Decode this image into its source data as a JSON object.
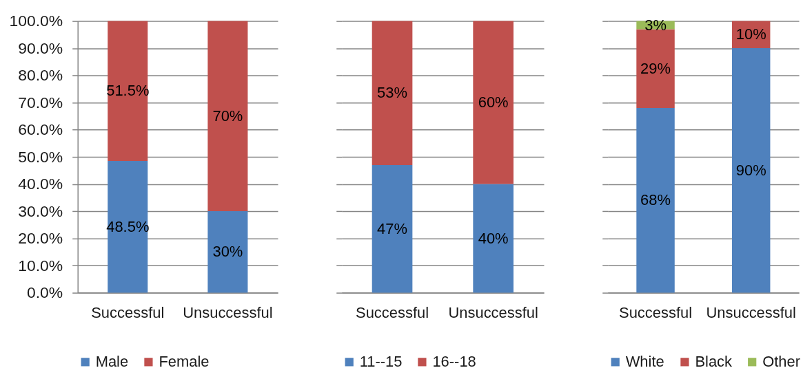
{
  "chart_data": [
    {
      "type": "bar",
      "stacked": true,
      "categories": [
        "Successful",
        "Unsuccessful"
      ],
      "series": [
        {
          "name": "Male",
          "color": "#4f81bd",
          "values": [
            48.5,
            30
          ],
          "value_labels": [
            "48.5%",
            "30%"
          ]
        },
        {
          "name": "Female",
          "color": "#c0504d",
          "values": [
            51.5,
            70
          ],
          "value_labels": [
            "51.5%",
            "70%"
          ]
        }
      ],
      "ylim": [
        0,
        100
      ],
      "yticks": [
        {
          "value": 0,
          "label": "0.0%"
        },
        {
          "value": 10,
          "label": "10.0%"
        },
        {
          "value": 20,
          "label": "20.0%"
        },
        {
          "value": 30,
          "label": "30.0%"
        },
        {
          "value": 40,
          "label": "40.0%"
        },
        {
          "value": 50,
          "label": "50.0%"
        },
        {
          "value": 60,
          "label": "60.0%"
        },
        {
          "value": 70,
          "label": "70.0%"
        },
        {
          "value": 80,
          "label": "80.0%"
        },
        {
          "value": 90,
          "label": "90.0%"
        },
        {
          "value": 100,
          "label": "100.0%"
        }
      ],
      "grid": "y",
      "legend": "bottom"
    },
    {
      "type": "bar",
      "stacked": true,
      "categories": [
        "Successful",
        "Unsuccessful"
      ],
      "series": [
        {
          "name": "11--15",
          "color": "#4f81bd",
          "values": [
            47,
            40
          ],
          "value_labels": [
            "47%",
            "40%"
          ]
        },
        {
          "name": "16--18",
          "color": "#c0504d",
          "values": [
            53,
            60
          ],
          "value_labels": [
            "53%",
            "60%"
          ]
        }
      ],
      "ylim": [
        0,
        100
      ],
      "yticks": [
        0,
        10,
        20,
        30,
        40,
        50,
        60,
        70,
        80,
        90,
        100
      ],
      "tick_labels": "x",
      "grid": "y",
      "legend": "bottom"
    },
    {
      "type": "bar",
      "stacked": true,
      "categories": [
        "Successful",
        "Unsuccessful"
      ],
      "series": [
        {
          "name": "White",
          "color": "#4f81bd",
          "values": [
            68,
            90
          ],
          "value_labels": [
            "68%",
            "90%"
          ]
        },
        {
          "name": "Black",
          "color": "#c0504d",
          "values": [
            29,
            10
          ],
          "value_labels": [
            "29%",
            "10%"
          ]
        },
        {
          "name": "Other",
          "color": "#9bbb59",
          "values": [
            3,
            null
          ],
          "value_labels": [
            "3%",
            null
          ]
        }
      ],
      "ylim": [
        0,
        100
      ],
      "yticks": [
        0,
        10,
        20,
        30,
        40,
        50,
        60,
        70,
        80,
        90,
        100
      ],
      "tick_labels": "x",
      "grid": "y",
      "legend": "bottom"
    }
  ]
}
